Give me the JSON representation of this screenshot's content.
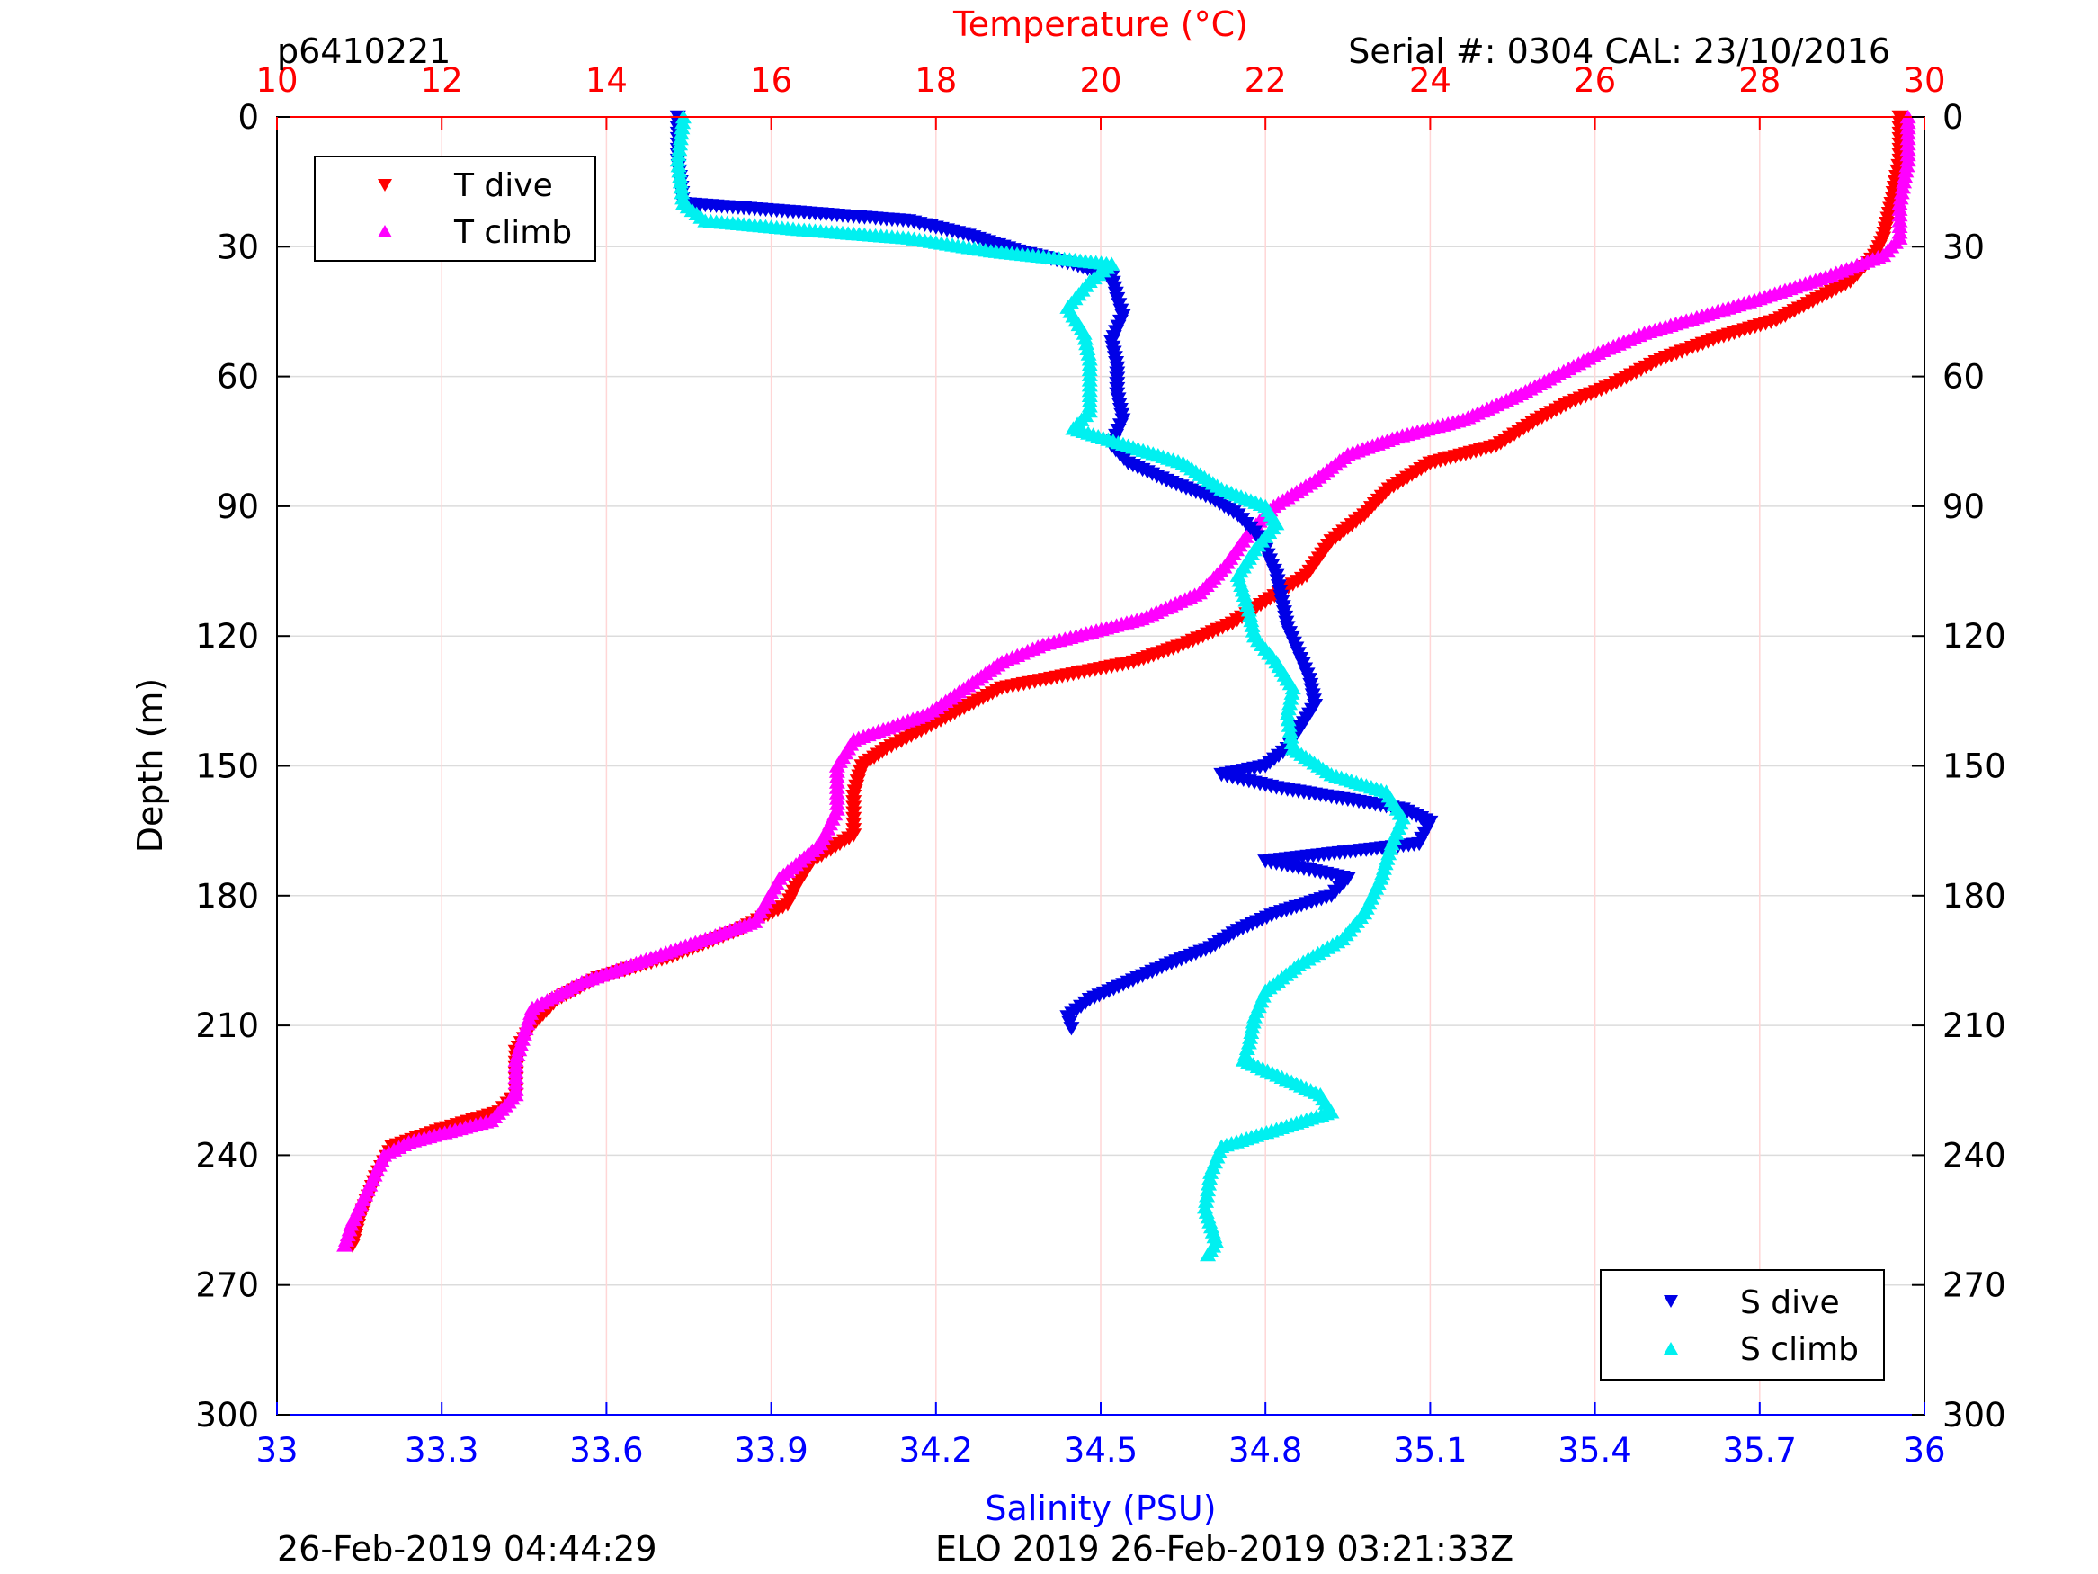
{
  "header": {
    "glider_id": "p6410221",
    "serial_cal": "Serial #: 0304  CAL: 23/10/2016"
  },
  "footer": {
    "plot_time": "26-Feb-2019 04:44:29",
    "mission": "ELO 2019 26-Feb-2019 03:21:33Z"
  },
  "colors": {
    "t_dive": "#ff0000",
    "t_climb": "#ff00ff",
    "s_dive": "#0000e6",
    "s_climb": "#00f0f0",
    "temp_axis": "#ff0000",
    "sal_axis": "#0000ff"
  },
  "chart_data": {
    "type": "scatter",
    "y_axis": {
      "label": "Depth (m)",
      "range": [
        0,
        300
      ],
      "reversed": true,
      "ticks": [
        "0",
        "30",
        "60",
        "90",
        "120",
        "150",
        "180",
        "210",
        "240",
        "270",
        "300"
      ]
    },
    "x_top": {
      "label": "Temperature (°C)",
      "range": [
        10,
        30
      ],
      "ticks": [
        "10",
        "12",
        "14",
        "16",
        "18",
        "20",
        "22",
        "24",
        "26",
        "28",
        "30"
      ]
    },
    "x_bottom": {
      "label": "Salinity (PSU)",
      "range": [
        33,
        36
      ],
      "ticks": [
        "33",
        "33.3",
        "33.6",
        "33.9",
        "34.2",
        "34.5",
        "34.8",
        "35.1",
        "35.4",
        "35.7",
        "36"
      ]
    },
    "grid": true,
    "legends": [
      {
        "position": "top-left",
        "entries": [
          "T dive",
          "T climb"
        ]
      },
      {
        "position": "bottom-right",
        "entries": [
          "S dive",
          "S climb"
        ]
      }
    ],
    "series": [
      {
        "name": "T dive",
        "axis": "temperature",
        "marker": "triangle-down",
        "points": [
          [
            29.7,
            0
          ],
          [
            29.7,
            10
          ],
          [
            29.6,
            20
          ],
          [
            29.5,
            28
          ],
          [
            29.4,
            32
          ],
          [
            29.1,
            38
          ],
          [
            28.7,
            42
          ],
          [
            28.2,
            47
          ],
          [
            27.5,
            51
          ],
          [
            26.8,
            56
          ],
          [
            26.2,
            62
          ],
          [
            25.7,
            66
          ],
          [
            25.3,
            70
          ],
          [
            24.8,
            76
          ],
          [
            24.0,
            80
          ],
          [
            23.5,
            86
          ],
          [
            23.2,
            92
          ],
          [
            22.8,
            98
          ],
          [
            22.5,
            106
          ],
          [
            22.0,
            112
          ],
          [
            21.6,
            117
          ],
          [
            21.0,
            122
          ],
          [
            20.4,
            126
          ],
          [
            19.6,
            129
          ],
          [
            18.8,
            132
          ],
          [
            18.0,
            140
          ],
          [
            17.4,
            146
          ],
          [
            17.1,
            150
          ],
          [
            17.0,
            157
          ],
          [
            17.0,
            166
          ],
          [
            16.5,
            172
          ],
          [
            16.3,
            178
          ],
          [
            16.2,
            182
          ],
          [
            15.6,
            188
          ],
          [
            14.8,
            194
          ],
          [
            13.9,
            199
          ],
          [
            13.4,
            204
          ],
          [
            13.1,
            210
          ],
          [
            12.9,
            216
          ],
          [
            12.9,
            226
          ],
          [
            12.7,
            230
          ],
          [
            12.0,
            234
          ],
          [
            11.4,
            238
          ],
          [
            11.2,
            245
          ],
          [
            11.0,
            255
          ],
          [
            10.9,
            262
          ]
        ]
      },
      {
        "name": "T climb",
        "axis": "temperature",
        "marker": "triangle-up",
        "points": [
          [
            29.8,
            0
          ],
          [
            29.8,
            10
          ],
          [
            29.7,
            20
          ],
          [
            29.7,
            28
          ],
          [
            29.5,
            32
          ],
          [
            28.8,
            37
          ],
          [
            28.0,
            42
          ],
          [
            27.3,
            46
          ],
          [
            26.6,
            50
          ],
          [
            26.1,
            54
          ],
          [
            25.5,
            60
          ],
          [
            25.1,
            64
          ],
          [
            24.4,
            70
          ],
          [
            23.6,
            74
          ],
          [
            23.0,
            78
          ],
          [
            22.6,
            84
          ],
          [
            22.1,
            90
          ],
          [
            21.8,
            96
          ],
          [
            21.5,
            104
          ],
          [
            21.2,
            110
          ],
          [
            20.5,
            116
          ],
          [
            19.7,
            120
          ],
          [
            19.3,
            122
          ],
          [
            18.8,
            126
          ],
          [
            18.5,
            130
          ],
          [
            17.9,
            138
          ],
          [
            17.0,
            144
          ],
          [
            16.8,
            150
          ],
          [
            16.8,
            160
          ],
          [
            16.6,
            168
          ],
          [
            16.1,
            176
          ],
          [
            15.8,
            186
          ],
          [
            15.2,
            190
          ],
          [
            14.6,
            194
          ],
          [
            13.7,
            200
          ],
          [
            13.1,
            206
          ],
          [
            13.0,
            212
          ],
          [
            12.9,
            218
          ],
          [
            12.9,
            226
          ],
          [
            12.6,
            232
          ],
          [
            11.6,
            237
          ],
          [
            11.3,
            240
          ],
          [
            11.1,
            248
          ],
          [
            10.9,
            256
          ],
          [
            10.8,
            262
          ]
        ]
      },
      {
        "name": "S dive",
        "axis": "salinity",
        "marker": "triangle-down",
        "points": [
          [
            33.73,
            0
          ],
          [
            33.73,
            10
          ],
          [
            33.74,
            20
          ],
          [
            33.95,
            22
          ],
          [
            34.15,
            24
          ],
          [
            34.25,
            27
          ],
          [
            34.35,
            31
          ],
          [
            34.45,
            34
          ],
          [
            34.52,
            37
          ],
          [
            34.53,
            42
          ],
          [
            34.54,
            46
          ],
          [
            34.52,
            52
          ],
          [
            34.53,
            58
          ],
          [
            34.53,
            64
          ],
          [
            34.54,
            70
          ],
          [
            34.52,
            76
          ],
          [
            34.55,
            80
          ],
          [
            34.62,
            84
          ],
          [
            34.7,
            88
          ],
          [
            34.75,
            92
          ],
          [
            34.78,
            96
          ],
          [
            34.8,
            100
          ],
          [
            34.82,
            106
          ],
          [
            34.83,
            112
          ],
          [
            34.84,
            118
          ],
          [
            34.86,
            124
          ],
          [
            34.88,
            130
          ],
          [
            34.89,
            136
          ],
          [
            34.86,
            142
          ],
          [
            34.84,
            146
          ],
          [
            34.8,
            150
          ],
          [
            34.72,
            152
          ],
          [
            34.82,
            155
          ],
          [
            34.96,
            158
          ],
          [
            35.05,
            160
          ],
          [
            35.1,
            163
          ],
          [
            35.08,
            168
          ],
          [
            34.8,
            172
          ],
          [
            34.88,
            174
          ],
          [
            34.95,
            176
          ],
          [
            34.92,
            180
          ],
          [
            34.82,
            184
          ],
          [
            34.75,
            188
          ],
          [
            34.7,
            192
          ],
          [
            34.62,
            196
          ],
          [
            34.55,
            200
          ],
          [
            34.48,
            204
          ],
          [
            34.44,
            208
          ],
          [
            34.45,
            212
          ]
        ]
      },
      {
        "name": "S climb",
        "axis": "salinity",
        "marker": "triangle-up",
        "points": [
          [
            33.74,
            0
          ],
          [
            33.73,
            10
          ],
          [
            33.74,
            20
          ],
          [
            33.78,
            24
          ],
          [
            33.95,
            26
          ],
          [
            34.15,
            28
          ],
          [
            34.3,
            31
          ],
          [
            34.52,
            34
          ],
          [
            34.48,
            38
          ],
          [
            34.44,
            44
          ],
          [
            34.47,
            50
          ],
          [
            34.48,
            56
          ],
          [
            34.48,
            62
          ],
          [
            34.48,
            68
          ],
          [
            34.45,
            72
          ],
          [
            34.55,
            76
          ],
          [
            34.65,
            80
          ],
          [
            34.72,
            86
          ],
          [
            34.8,
            90
          ],
          [
            34.82,
            94
          ],
          [
            34.78,
            100
          ],
          [
            34.75,
            106
          ],
          [
            34.77,
            114
          ],
          [
            34.78,
            120
          ],
          [
            34.82,
            126
          ],
          [
            34.85,
            132
          ],
          [
            34.84,
            138
          ],
          [
            34.85,
            146
          ],
          [
            34.92,
            152
          ],
          [
            35.02,
            156
          ],
          [
            35.05,
            162
          ],
          [
            35.03,
            168
          ],
          [
            35.01,
            176
          ],
          [
            34.98,
            184
          ],
          [
            34.94,
            190
          ],
          [
            34.86,
            196
          ],
          [
            34.8,
            202
          ],
          [
            34.78,
            208
          ],
          [
            34.77,
            214
          ],
          [
            34.76,
            218
          ],
          [
            34.83,
            222
          ],
          [
            34.9,
            226
          ],
          [
            34.92,
            230
          ],
          [
            34.82,
            234
          ],
          [
            34.72,
            238
          ],
          [
            34.7,
            244
          ],
          [
            34.69,
            252
          ],
          [
            34.71,
            260
          ],
          [
            34.69,
            264
          ]
        ]
      }
    ]
  }
}
